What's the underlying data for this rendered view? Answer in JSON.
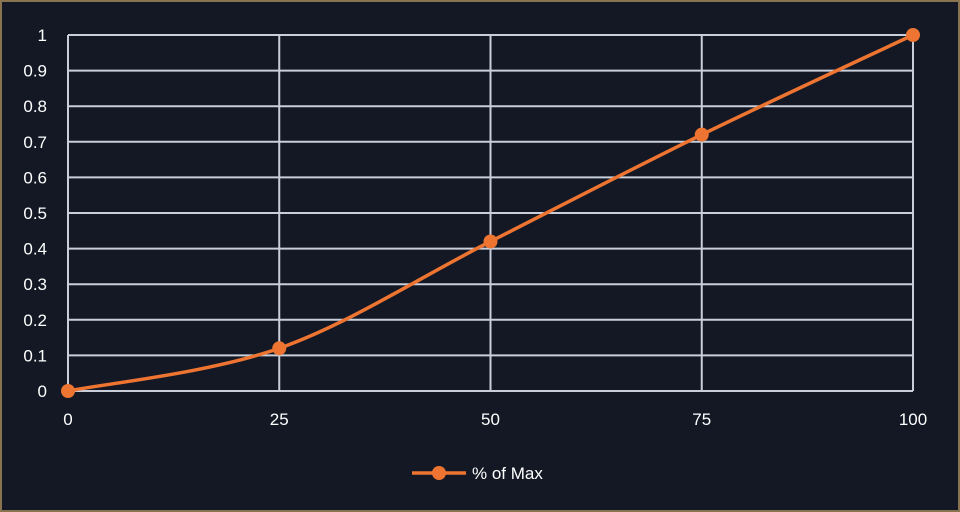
{
  "chart_data": {
    "type": "line",
    "title": "",
    "xlabel": "",
    "ylabel": "",
    "x": [
      0,
      25,
      50,
      75,
      100
    ],
    "series": [
      {
        "name": "% of Max",
        "values": [
          0,
          0.12,
          0.42,
          0.72,
          1
        ],
        "color": "#ed7431",
        "smooth": true,
        "markers": true
      }
    ],
    "xlim": [
      0,
      100
    ],
    "ylim": [
      0,
      1
    ],
    "xticks": [
      "0",
      "25",
      "50",
      "75",
      "100"
    ],
    "yticks": [
      "0",
      "0.1",
      "0.2",
      "0.3",
      "0.4",
      "0.5",
      "0.6",
      "0.7",
      "0.8",
      "0.9",
      "1"
    ],
    "grid": true,
    "legend": "bottom",
    "colors": {
      "background": "#131824",
      "grid": "#c8ceda",
      "border": "#8a7350",
      "text": "#ffffff"
    }
  }
}
